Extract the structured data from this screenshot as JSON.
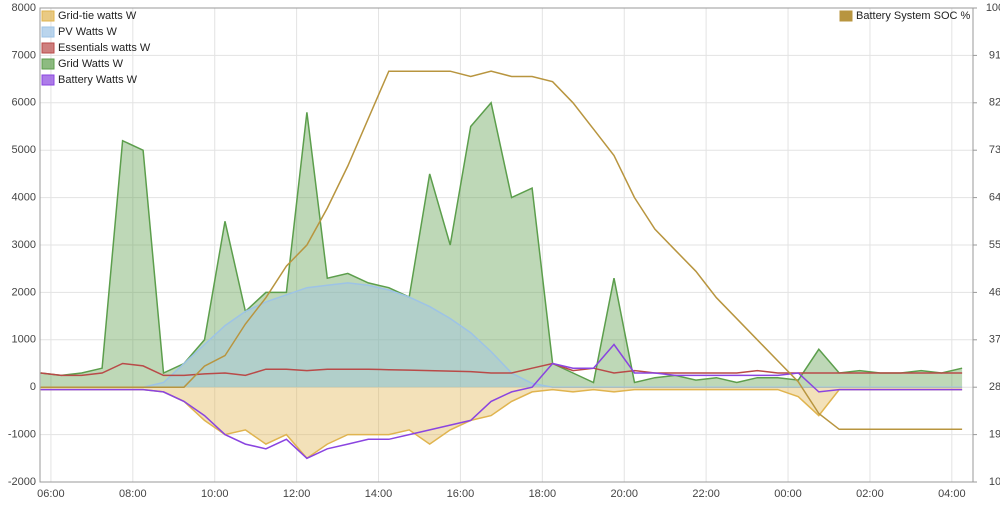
{
  "chart_data": {
    "type": "line",
    "x": [
      "05:45",
      "06:15",
      "06:45",
      "07:15",
      "07:45",
      "08:15",
      "08:45",
      "09:15",
      "09:45",
      "10:15",
      "10:45",
      "11:15",
      "11:45",
      "12:15",
      "12:45",
      "13:15",
      "13:45",
      "14:15",
      "14:45",
      "15:15",
      "15:45",
      "16:15",
      "16:45",
      "17:15",
      "17:45",
      "18:15",
      "18:45",
      "19:15",
      "19:45",
      "20:15",
      "20:45",
      "21:15",
      "21:45",
      "22:15",
      "22:45",
      "23:15",
      "23:45",
      "00:15",
      "00:45",
      "01:15",
      "01:45",
      "02:15",
      "02:45",
      "03:15",
      "03:45",
      "04:15"
    ],
    "series": [
      {
        "name": "Grid Watts W",
        "color": "#5c9e4c",
        "fill": true,
        "values": [
          300,
          250,
          300,
          400,
          5200,
          5000,
          300,
          500,
          1000,
          3500,
          1600,
          2000,
          2000,
          5800,
          2300,
          2400,
          2200,
          2100,
          1900,
          4500,
          3000,
          5500,
          6000,
          4000,
          4200,
          500,
          300,
          100,
          2300,
          100,
          200,
          250,
          150,
          200,
          100,
          200,
          200,
          150,
          800,
          300,
          350,
          300,
          300,
          350,
          300,
          400
        ]
      },
      {
        "name": "PV Watts W",
        "color": "#9dc3e6",
        "fill": true,
        "values": [
          0,
          0,
          0,
          0,
          0,
          0,
          100,
          500,
          900,
          1300,
          1600,
          1800,
          1950,
          2100,
          2150,
          2200,
          2150,
          2050,
          1900,
          1700,
          1450,
          1150,
          750,
          300,
          80,
          0,
          0,
          0,
          0,
          0,
          0,
          0,
          0,
          0,
          0,
          0,
          0,
          0,
          0,
          0,
          0,
          0,
          0,
          0,
          0,
          0
        ]
      },
      {
        "name": "Grid-tie watts W",
        "color": "#e0b44f",
        "fill": true,
        "values": [
          -50,
          -50,
          -50,
          -50,
          -50,
          -50,
          -100,
          -300,
          -700,
          -1000,
          -900,
          -1200,
          -1000,
          -1500,
          -1200,
          -1000,
          -1000,
          -1000,
          -900,
          -1200,
          -900,
          -700,
          -600,
          -300,
          -100,
          -50,
          -100,
          -50,
          -100,
          -50,
          -50,
          -50,
          -50,
          -50,
          -50,
          -50,
          -50,
          -200,
          -600,
          -50,
          -50,
          -50,
          -50,
          -50,
          -50,
          -50
        ]
      },
      {
        "name": "Essentials watts W",
        "color": "#b94a48",
        "fill": false,
        "values": [
          300,
          250,
          250,
          300,
          500,
          450,
          250,
          250,
          280,
          300,
          250,
          380,
          380,
          350,
          380,
          380,
          380,
          370,
          360,
          350,
          340,
          330,
          300,
          300,
          400,
          500,
          350,
          400,
          300,
          350,
          300,
          300,
          300,
          300,
          300,
          350,
          300,
          300,
          300,
          300,
          300,
          300,
          300,
          300,
          300,
          300
        ]
      },
      {
        "name": "Battery Watts W",
        "color": "#8a44e0",
        "fill": false,
        "values": [
          -50,
          -50,
          -50,
          -50,
          -50,
          -50,
          -100,
          -300,
          -600,
          -1000,
          -1200,
          -1300,
          -1100,
          -1500,
          -1300,
          -1200,
          -1100,
          -1100,
          -1000,
          -900,
          -800,
          -700,
          -300,
          -100,
          0,
          500,
          400,
          400,
          900,
          300,
          300,
          250,
          250,
          250,
          250,
          250,
          250,
          300,
          -100,
          -50,
          -50,
          -50,
          -50,
          -50,
          -50,
          -50
        ]
      },
      {
        "name": "Battery System SOC %",
        "color": "#b8953f",
        "fill": false,
        "axis": "y2",
        "values": [
          28,
          28,
          28,
          28,
          28,
          28,
          28,
          28,
          32,
          34,
          40,
          45,
          51,
          55,
          62,
          70,
          79,
          88,
          88,
          88,
          88,
          87,
          88,
          87,
          87,
          86,
          82,
          77,
          72,
          64,
          58,
          54,
          50,
          45,
          41,
          37,
          33,
          29,
          23,
          20,
          20,
          20,
          20,
          20,
          20,
          20
        ]
      }
    ],
    "legend_order": [
      2,
      1,
      3,
      0,
      4
    ],
    "xlim": [
      "05:44",
      "04:31"
    ],
    "xticks": [
      "06:00",
      "08:00",
      "10:00",
      "12:00",
      "14:00",
      "16:00",
      "18:00",
      "20:00",
      "22:00",
      "00:00",
      "02:00",
      "04:00"
    ],
    "ylim": [
      -2000,
      8000
    ],
    "yticks": [
      -2000,
      -1000,
      0,
      1000,
      2000,
      3000,
      4000,
      5000,
      6000,
      7000,
      8000
    ],
    "y2lim": [
      10,
      100
    ],
    "y2ticks": [
      10,
      19,
      28,
      37,
      46,
      55,
      64,
      73,
      82,
      91,
      100
    ],
    "grid": true
  }
}
